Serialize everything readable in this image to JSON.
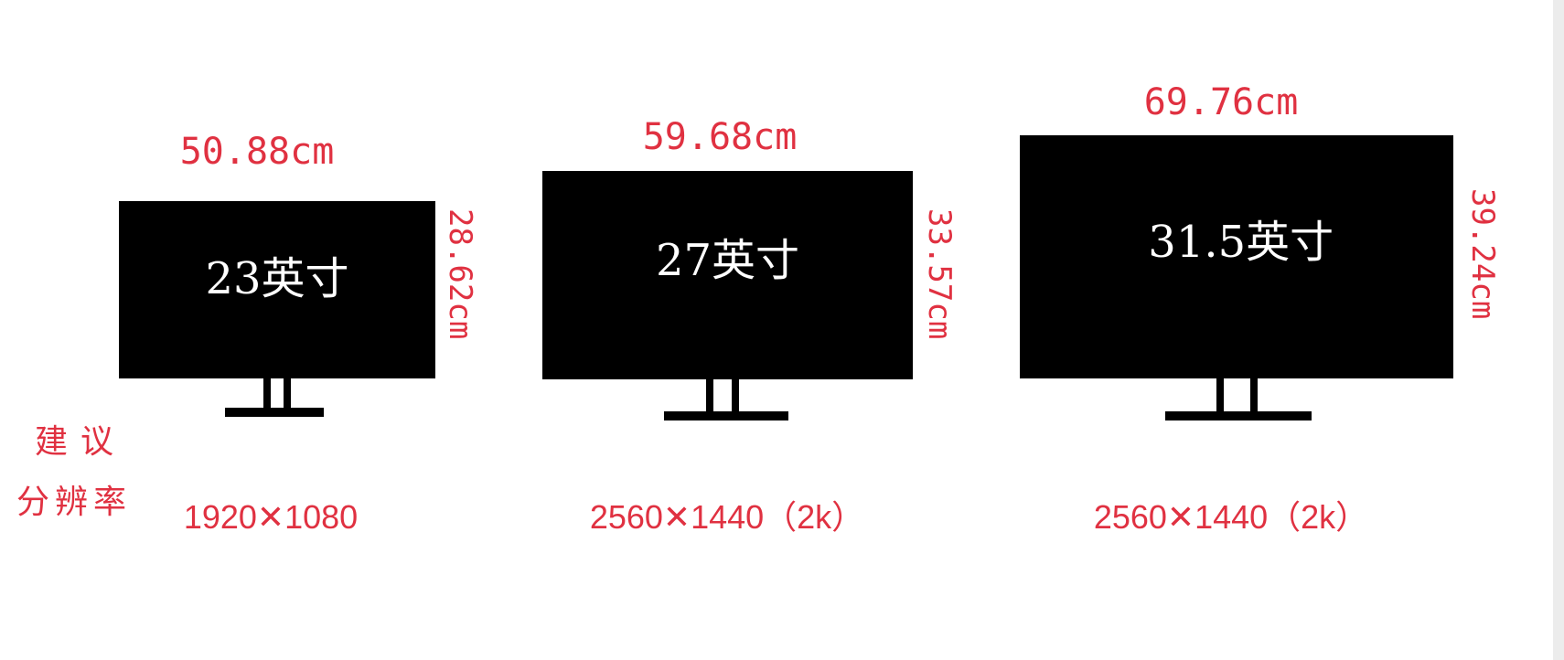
{
  "caption": {
    "line1": "建议",
    "line2": "分辨率"
  },
  "colors": {
    "screen": "#000000",
    "label_text": "#ffffff",
    "dimension_text": "#e03141",
    "background": "#ffffff"
  },
  "monitors": [
    {
      "size_label": "23英寸",
      "width_label": "50.88cm",
      "height_label": "28.62cm",
      "resolution": "1920✕1080"
    },
    {
      "size_label": "27英寸",
      "width_label": "59.68cm",
      "height_label": "33.57cm",
      "resolution": "2560✕1440（2k）"
    },
    {
      "size_label": "31.5英寸",
      "width_label": "69.76cm",
      "height_label": "39.24cm",
      "resolution": "2560✕1440（2k）"
    }
  ]
}
